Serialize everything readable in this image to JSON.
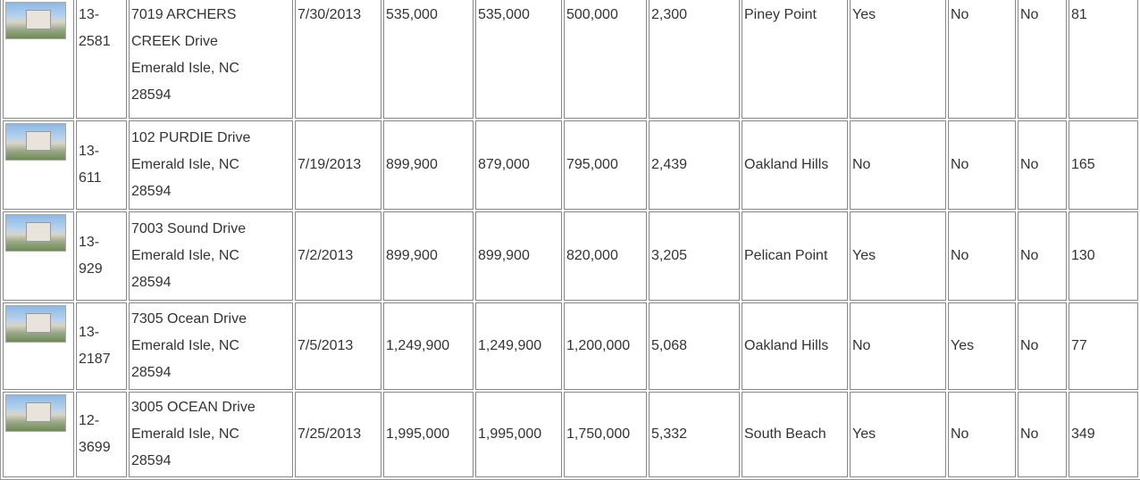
{
  "table": {
    "rows": [
      [
        "13-2581",
        [
          "7019 ARCHERS",
          "CREEK Drive",
          "Emerald Isle, NC",
          "28594"
        ],
        "7/30/2013",
        "535,000",
        "535,000",
        "500,000",
        "2,300",
        "Piney Point",
        "Yes",
        "No",
        "No",
        "81"
      ],
      [
        "13-611",
        [
          "102 PURDIE Drive",
          "Emerald Isle, NC",
          "28594"
        ],
        "7/19/2013",
        "899,900",
        "879,000",
        "795,000",
        "2,439",
        "Oakland Hills",
        "No",
        "No",
        "No",
        "165"
      ],
      [
        "13-929",
        [
          "7003 Sound Drive",
          "Emerald Isle, NC",
          "28594"
        ],
        "7/2/2013",
        "899,900",
        "899,900",
        "820,000",
        "3,205",
        "Pelican Point",
        "Yes",
        "No",
        "No",
        "130"
      ],
      [
        "13-2187",
        [
          "7305 Ocean Drive",
          "Emerald Isle, NC",
          "28594"
        ],
        "7/5/2013",
        "1,249,900",
        "1,249,900",
        "1,200,000",
        "5,068",
        "Oakland Hills",
        "No",
        "Yes",
        "No",
        "77"
      ],
      [
        "12-3699",
        [
          "3005 OCEAN Drive",
          "Emerald Isle, NC",
          "28594"
        ],
        "7/25/2013",
        "1,995,000",
        "1,995,000",
        "1,750,000",
        "5,332",
        "South Beach",
        "Yes",
        "No",
        "No",
        "349"
      ]
    ]
  }
}
